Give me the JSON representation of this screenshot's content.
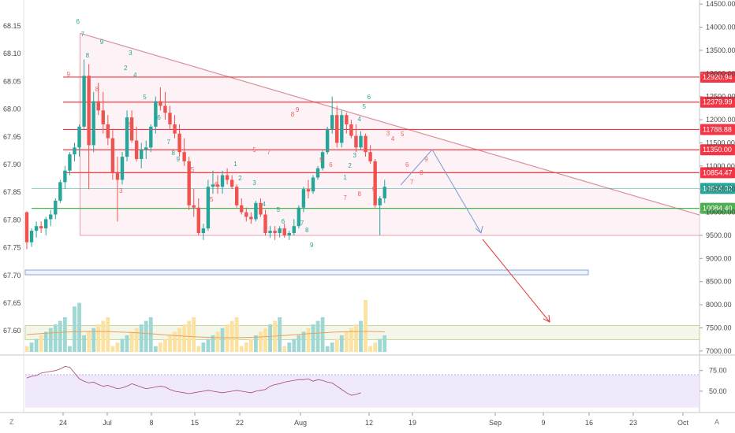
{
  "chart_data": {
    "type": "candlestick",
    "price_axis": {
      "ticks": [
        "14500.00",
        "14000.00",
        "13500.00",
        "13000.00",
        "12500.00",
        "12000.00",
        "11500.00",
        "11000.00",
        "10500.00",
        "10000.00",
        "9500.00",
        "9000.00",
        "8500.00",
        "8000.00",
        "7500.00",
        "7000.00"
      ],
      "range": [
        6980,
        14520
      ]
    },
    "left_axis": {
      "ticks": [
        "68.15",
        "68.10",
        "68.05",
        "68.00",
        "67.95",
        "67.90",
        "67.85",
        "67.80",
        "67.75",
        "67.70",
        "67.65",
        "67.60"
      ]
    },
    "rsi_axis": {
      "ticks": [
        "75.00",
        "50.00"
      ],
      "range": [
        25,
        90
      ]
    },
    "time_axis": {
      "labels": [
        "24",
        "Jul",
        "8",
        "15",
        "22",
        "Aug",
        "12",
        "19",
        "Sep",
        "9",
        "16",
        "23",
        "Oct"
      ]
    },
    "price_levels": [
      {
        "value": 12920.94,
        "label": "12920.94",
        "color": "#f23645"
      },
      {
        "value": 12379.99,
        "label": "12379.99",
        "color": "#f23645"
      },
      {
        "value": 11788.88,
        "label": "11788.88",
        "color": "#f23645"
      },
      {
        "value": 11350.0,
        "label": "11350.00",
        "color": "#f23645"
      },
      {
        "value": 10854.47,
        "label": "10854.47",
        "color": "#f23645"
      },
      {
        "value": 10514.02,
        "label": "10514.02",
        "color": "#26a69a"
      },
      {
        "value": 10084.4,
        "label": "10084.40",
        "color": "#4caf50"
      }
    ],
    "candles": [
      [
        10000,
        10020,
        9200,
        9350
      ],
      [
        9350,
        9650,
        9250,
        9600
      ],
      [
        9600,
        9800,
        9450,
        9700
      ],
      [
        9700,
        9800,
        9550,
        9650
      ],
      [
        9650,
        9900,
        9500,
        9850
      ],
      [
        9850,
        10050,
        9700,
        9950
      ],
      [
        9950,
        10300,
        9850,
        10250
      ],
      [
        10250,
        10700,
        10200,
        10650
      ],
      [
        10650,
        11000,
        10500,
        10900
      ],
      [
        10900,
        11300,
        10800,
        11250
      ],
      [
        11250,
        11500,
        11100,
        11400
      ],
      [
        11400,
        11900,
        11200,
        11850
      ],
      [
        11850,
        13300,
        11800,
        12950
      ],
      [
        12950,
        13200,
        10500,
        11450
      ],
      [
        11450,
        12600,
        11300,
        12400
      ],
      [
        12400,
        12800,
        12100,
        12200
      ],
      [
        12200,
        12600,
        11700,
        11900
      ],
      [
        11900,
        12100,
        11450,
        11600
      ],
      [
        11600,
        11800,
        10700,
        10850
      ],
      [
        10850,
        11200,
        9800,
        10700
      ],
      [
        10700,
        11300,
        10600,
        11200
      ],
      [
        11200,
        12200,
        11100,
        12050
      ],
      [
        12050,
        12200,
        11500,
        11550
      ],
      [
        11550,
        11850,
        11100,
        11150
      ],
      [
        11150,
        11500,
        10950,
        11350
      ],
      [
        11350,
        11550,
        11150,
        11400
      ],
      [
        11400,
        11900,
        11300,
        11850
      ],
      [
        11850,
        12500,
        11700,
        12400
      ],
      [
        12400,
        12700,
        12200,
        12300
      ],
      [
        12300,
        12600,
        12000,
        12150
      ],
      [
        12150,
        12300,
        11800,
        11900
      ],
      [
        11900,
        12100,
        11600,
        11700
      ],
      [
        11700,
        11900,
        11200,
        11300
      ],
      [
        11300,
        11600,
        11000,
        11100
      ],
      [
        11100,
        11200,
        10050,
        10150
      ],
      [
        10150,
        10500,
        9900,
        10100
      ],
      [
        10100,
        10300,
        9500,
        9550
      ],
      [
        9550,
        9750,
        9400,
        9650
      ],
      [
        9650,
        10700,
        9600,
        10550
      ],
      [
        10550,
        10900,
        10400,
        10600
      ],
      [
        10600,
        10800,
        10400,
        10550
      ],
      [
        10550,
        10900,
        10400,
        10800
      ],
      [
        10800,
        10950,
        10600,
        10700
      ],
      [
        10700,
        10800,
        10500,
        10550
      ],
      [
        10550,
        10600,
        10100,
        10150
      ],
      [
        10150,
        10300,
        9950,
        10000
      ],
      [
        10000,
        10100,
        9800,
        9900
      ],
      [
        9900,
        10000,
        9750,
        9850
      ],
      [
        9850,
        10250,
        9800,
        10200
      ],
      [
        10200,
        10300,
        9900,
        9950
      ],
      [
        9950,
        10050,
        9500,
        9550
      ],
      [
        9550,
        9700,
        9450,
        9600
      ],
      [
        9600,
        9700,
        9400,
        9550
      ],
      [
        9550,
        9700,
        9450,
        9650
      ],
      [
        9650,
        9750,
        9450,
        9500
      ],
      [
        9500,
        9600,
        9400,
        9550
      ],
      [
        9550,
        9850,
        9500,
        9700
      ],
      [
        9700,
        10150,
        9650,
        10100
      ],
      [
        10100,
        10550,
        10000,
        10500
      ],
      [
        10500,
        10700,
        10300,
        10450
      ],
      [
        10450,
        10800,
        10400,
        10750
      ],
      [
        10750,
        11000,
        10700,
        10950
      ],
      [
        10950,
        11350,
        10900,
        11300
      ],
      [
        11300,
        11850,
        11250,
        11800
      ],
      [
        11800,
        12500,
        11700,
        12100
      ],
      [
        12100,
        12300,
        11400,
        11500
      ],
      [
        11500,
        12200,
        11400,
        12100
      ],
      [
        12100,
        12150,
        11700,
        11900
      ],
      [
        11900,
        12000,
        11600,
        11650
      ],
      [
        11650,
        11900,
        11300,
        11400
      ],
      [
        11400,
        11750,
        11350,
        11650
      ],
      [
        11650,
        11700,
        11200,
        11300
      ],
      [
        11300,
        11450,
        11050,
        11100
      ],
      [
        11100,
        11150,
        10100,
        10150
      ],
      [
        10150,
        10350,
        9500,
        10300
      ],
      [
        10300,
        10700,
        10200,
        10550
      ]
    ],
    "volume_ranges": [
      0,
      6000
    ],
    "rsi_values": [
      66,
      68,
      69,
      72,
      73,
      74,
      75,
      77,
      80,
      79,
      72,
      65,
      62,
      60,
      61,
      58,
      56,
      57,
      55,
      53,
      54,
      56,
      59,
      57,
      55,
      53,
      54,
      55,
      56,
      55,
      52,
      50,
      49,
      48,
      47,
      48,
      49,
      50,
      51,
      50,
      49,
      48,
      49,
      50,
      51,
      50,
      49,
      48,
      50,
      51,
      52,
      56,
      58,
      59,
      61,
      62,
      63,
      64,
      64,
      65,
      62,
      64,
      63,
      61,
      60,
      56,
      52,
      48,
      45,
      46,
      48
    ],
    "annotations_red": [
      "9",
      "8",
      "5",
      "5",
      "3",
      "5",
      "6",
      "5",
      "7",
      "8",
      "9",
      "5",
      "6",
      "7",
      "8",
      "9",
      "3",
      "4",
      "5",
      "6",
      "7",
      "8",
      "9"
    ],
    "annotations_green": [
      "6",
      "7",
      "8",
      "9",
      "2",
      "3",
      "4",
      "5",
      "6",
      "7",
      "8",
      "9",
      "1",
      "2",
      "3",
      "4",
      "5",
      "6",
      "7",
      "8",
      "9",
      "1",
      "2",
      "3",
      "4",
      "5",
      "6"
    ],
    "corner_labels": {
      "left": "Z",
      "right": "A"
    }
  }
}
